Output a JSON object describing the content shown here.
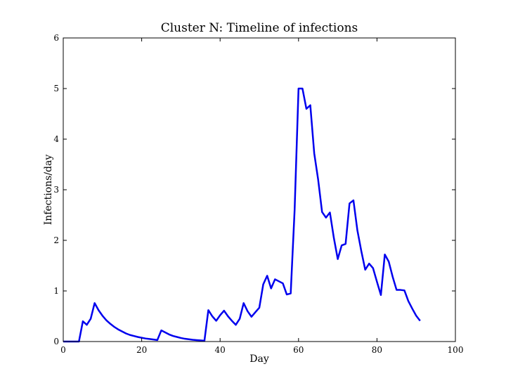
{
  "chart_data": {
    "type": "line",
    "title": "Cluster N: Timeline of infections",
    "xlabel": "Day",
    "ylabel": "Infections/day",
    "xlim": [
      0,
      100
    ],
    "ylim": [
      0,
      6
    ],
    "xticks": [
      0,
      20,
      40,
      60,
      80,
      100
    ],
    "yticks": [
      0,
      1,
      2,
      3,
      4,
      5,
      6
    ],
    "xtick_labels": [
      "0",
      "20",
      "40",
      "60",
      "80",
      "100"
    ],
    "ytick_labels": [
      "0",
      "1",
      "2",
      "3",
      "4",
      "5",
      "6"
    ],
    "grid": false,
    "legend": "none",
    "series": [
      {
        "color": "#0000ee",
        "x": [
          0,
          1,
          2,
          3,
          4,
          5,
          6,
          7,
          8,
          9,
          10,
          11,
          12,
          13,
          14,
          15,
          16,
          17,
          18,
          19,
          20,
          21,
          22,
          23,
          24,
          25,
          26,
          27,
          28,
          29,
          30,
          31,
          32,
          33,
          34,
          35,
          36,
          37,
          38,
          39,
          40,
          41,
          42,
          43,
          44,
          45,
          46,
          47,
          48,
          49,
          50,
          51,
          52,
          53,
          54,
          55,
          56,
          57,
          58,
          59,
          60,
          61,
          62,
          63,
          64,
          65,
          66,
          67,
          68,
          69,
          70,
          71,
          72,
          73,
          74,
          75,
          76,
          77,
          78,
          79,
          80,
          81,
          82,
          83,
          84,
          85,
          86,
          87,
          88,
          89,
          90,
          91
        ],
        "y": [
          0,
          0,
          0,
          0,
          0,
          0.4,
          0.33,
          0.45,
          0.76,
          0.62,
          0.51,
          0.42,
          0.35,
          0.29,
          0.24,
          0.2,
          0.16,
          0.13,
          0.11,
          0.09,
          0.075,
          0.06,
          0.05,
          0.04,
          0.03,
          0.22,
          0.18,
          0.14,
          0.11,
          0.09,
          0.07,
          0.055,
          0.045,
          0.035,
          0.028,
          0.022,
          0.015,
          0.62,
          0.5,
          0.41,
          0.52,
          0.61,
          0.5,
          0.41,
          0.33,
          0.45,
          0.76,
          0.6,
          0.49,
          0.58,
          0.67,
          1.13,
          1.3,
          1.05,
          1.23,
          1.19,
          1.15,
          0.93,
          0.95,
          2.6,
          5.0,
          5.0,
          4.6,
          4.67,
          3.72,
          3.2,
          2.56,
          2.45,
          2.55,
          2.05,
          1.63,
          1.9,
          1.93,
          2.73,
          2.79,
          2.2,
          1.79,
          1.42,
          1.54,
          1.45,
          1.18,
          0.92,
          1.72,
          1.58,
          1.28,
          1.02,
          1.02,
          1.01,
          0.8,
          0.65,
          0.51,
          0.41
        ]
      }
    ]
  }
}
